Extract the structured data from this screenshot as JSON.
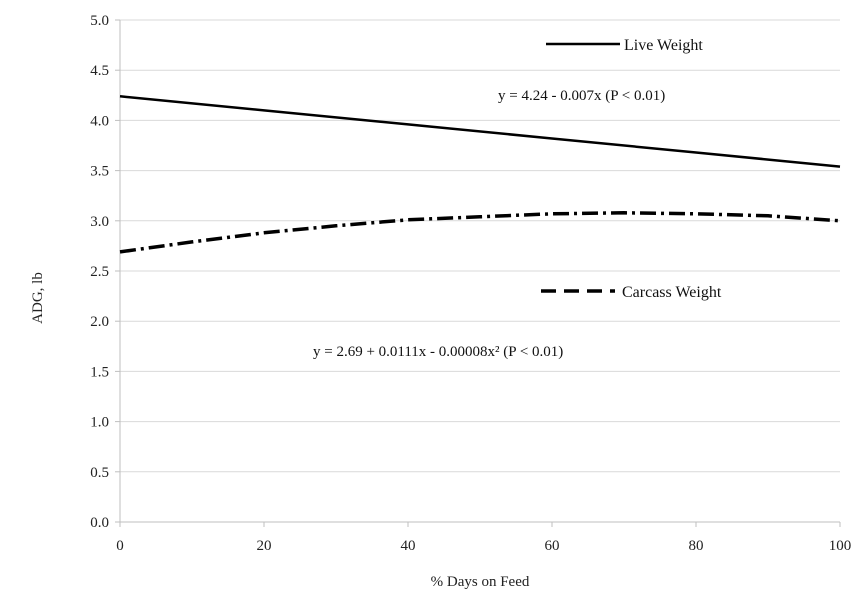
{
  "chart_data": {
    "type": "line",
    "xlabel": "% Days on Feed",
    "ylabel": "ADG, lb",
    "xlim": [
      0,
      100
    ],
    "ylim": [
      0,
      5
    ],
    "x_ticks": [
      "0",
      "20",
      "40",
      "60",
      "80",
      "100"
    ],
    "y_ticks": [
      "0.0",
      "0.5",
      "1.0",
      "1.5",
      "2.0",
      "2.5",
      "3.0",
      "3.5",
      "4.0",
      "4.5",
      "5.0"
    ],
    "grid": "horizontal",
    "series": [
      {
        "name": "Live Weight",
        "style": "solid",
        "color": "#000000",
        "x": [
          0,
          20,
          40,
          60,
          80,
          100
        ],
        "y": [
          4.24,
          4.1,
          3.96,
          3.82,
          3.68,
          3.54
        ]
      },
      {
        "name": "Carcass Weight",
        "style": "dash-dot",
        "color": "#000000",
        "x": [
          0,
          10,
          20,
          30,
          40,
          50,
          60,
          70,
          80,
          90,
          100
        ],
        "y": [
          2.69,
          2.79,
          2.88,
          2.95,
          3.01,
          3.04,
          3.07,
          3.08,
          3.07,
          3.05,
          3.0
        ]
      }
    ],
    "annotations": {
      "live_equation": "y = 4.24 - 0.007x (P < 0.01)",
      "carcass_equation": "y = 2.69 + 0.0111x - 0.00008x² (P < 0.01)"
    },
    "legend": {
      "live": "Live Weight",
      "carcass": "Carcass Weight"
    },
    "colors": {
      "grid": "#d9d9d9",
      "axis": "#bfbfbf",
      "text": "#222222"
    }
  }
}
